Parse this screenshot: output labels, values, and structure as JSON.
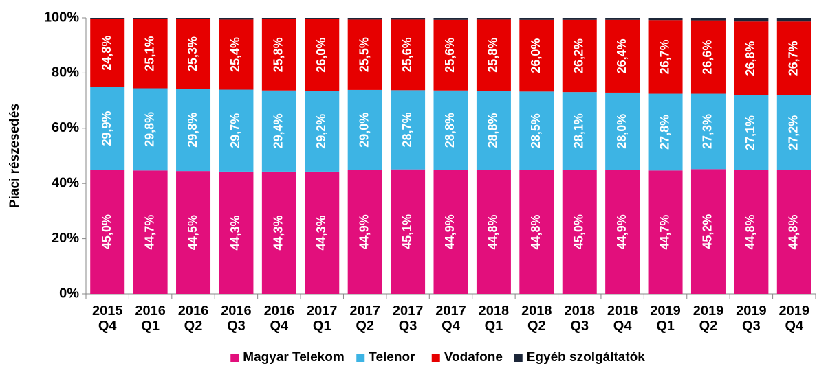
{
  "chart_data": {
    "type": "stacked_bar",
    "y_label": "Piaci részesedés",
    "categories": [
      "2015 Q4",
      "2016 Q1",
      "2016 Q2",
      "2016 Q3",
      "2016 Q4",
      "2017 Q1",
      "2017 Q2",
      "2017 Q3",
      "2017 Q4",
      "2018 Q1",
      "2018 Q2",
      "2018 Q3",
      "2018 Q4",
      "2019 Q1",
      "2019 Q2",
      "2019 Q3",
      "2019 Q4"
    ],
    "series": [
      {
        "name": "Magyar Telekom",
        "color": "#e20f7c",
        "values": [
          45.0,
          44.7,
          44.5,
          44.3,
          44.3,
          44.3,
          44.9,
          45.1,
          44.9,
          44.8,
          44.8,
          45.0,
          44.9,
          44.7,
          45.2,
          44.8,
          44.8
        ],
        "value_labels": [
          "45,0%",
          "44,7%",
          "44,5%",
          "44,3%",
          "44,3%",
          "44,3%",
          "44,9%",
          "45,1%",
          "44,9%",
          "44,8%",
          "44,8%",
          "45,0%",
          "44,9%",
          "44,7%",
          "45,2%",
          "44,8%",
          "44,8%"
        ]
      },
      {
        "name": "Telenor",
        "color": "#3db4e4",
        "values": [
          29.9,
          29.8,
          29.8,
          29.7,
          29.4,
          29.2,
          29.0,
          28.7,
          28.8,
          28.8,
          28.5,
          28.1,
          28.0,
          27.8,
          27.3,
          27.1,
          27.2
        ],
        "value_labels": [
          "29,9%",
          "29,8%",
          "29,8%",
          "29,7%",
          "29,4%",
          "29,2%",
          "29,0%",
          "28,7%",
          "28,8%",
          "28,8%",
          "28,5%",
          "28,1%",
          "28,0%",
          "27,8%",
          "27,3%",
          "27,1%",
          "27,2%"
        ]
      },
      {
        "name": "Vodafone",
        "color": "#e60000",
        "values": [
          24.8,
          25.1,
          25.3,
          25.4,
          25.8,
          26.0,
          25.5,
          25.6,
          25.6,
          25.8,
          26.0,
          26.2,
          26.4,
          26.7,
          26.6,
          26.8,
          26.7
        ],
        "value_labels": [
          "24,8%",
          "25,1%",
          "25,3%",
          "25,4%",
          "25,8%",
          "26,0%",
          "25,5%",
          "25,6%",
          "25,6%",
          "25,8%",
          "26,0%",
          "26,2%",
          "26,4%",
          "26,7%",
          "26,6%",
          "26,8%",
          "26,7%"
        ]
      },
      {
        "name": "Egyéb szolgáltatók",
        "color": "#1c2638",
        "values": [
          0.3,
          0.4,
          0.4,
          0.6,
          0.5,
          0.5,
          0.6,
          0.6,
          0.7,
          0.6,
          0.7,
          0.7,
          0.7,
          0.8,
          0.9,
          1.3,
          1.3
        ]
      }
    ],
    "ylim": [
      0,
      100
    ],
    "yticks": [
      {
        "value": 0,
        "label": "0%"
      },
      {
        "value": 20,
        "label": "20%"
      },
      {
        "value": 40,
        "label": "40%"
      },
      {
        "value": 60,
        "label": "60%"
      },
      {
        "value": 80,
        "label": "80%"
      },
      {
        "value": 100,
        "label": "100%"
      }
    ],
    "legend": "bottom"
  }
}
